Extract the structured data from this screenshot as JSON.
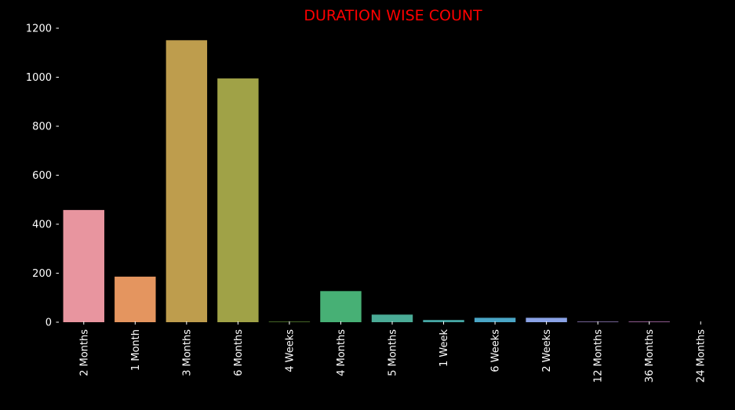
{
  "chart_data": {
    "type": "bar",
    "title": "DURATION WISE COUNT",
    "xlabel": "",
    "ylabel": "",
    "categories": [
      "2 Months",
      "1 Month",
      "3 Months",
      "6 Months",
      "4 Weeks",
      "4 Months",
      "5 Months",
      "1 Week",
      "6 Weeks",
      "2 Weeks",
      "12 Months",
      "36 Months",
      "24 Months"
    ],
    "values": [
      458,
      186,
      1151,
      995,
      2,
      127,
      31,
      9,
      18,
      18,
      2,
      2,
      0
    ],
    "colors": [
      "#e8959f",
      "#e4955f",
      "#be9d4d",
      "#a0a247",
      "#6e9f3f",
      "#47b075",
      "#4aab96",
      "#46a7a5",
      "#4aa6c6",
      "#8aa2e6",
      "#b79bec",
      "#e18ee3",
      "#e98fc6"
    ],
    "ylim": [
      0,
      1200
    ],
    "yticks": [
      0,
      200,
      400,
      600,
      800,
      1000,
      1200
    ],
    "grid": false,
    "background": "#000000",
    "title_color": "#ff0000",
    "text_color": "#ffffff"
  }
}
